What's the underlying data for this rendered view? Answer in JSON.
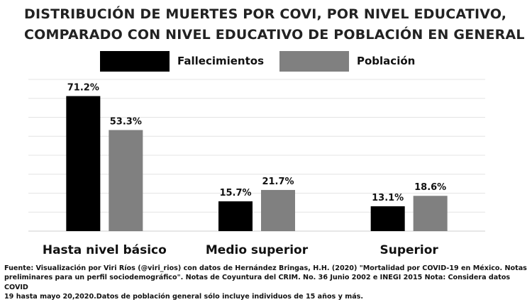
{
  "chart_data": {
    "type": "bar",
    "title_lines": [
      "DISTRIBUCIÓN DE MUERTES POR COVI, POR NIVEL EDUCATIVO,",
      "COMPARADO CON NIVEL EDUCATIVO DE POBLACIÓN EN GENERAL"
    ],
    "categories": [
      "Hasta nivel básico",
      "Medio superior",
      "Superior"
    ],
    "series": [
      {
        "name": "Fallecimientos",
        "values": [
          71.2,
          15.7,
          13.1
        ],
        "labels": [
          "71.2%",
          "15.7%",
          "13.1%"
        ],
        "color": "#000000"
      },
      {
        "name": "Población",
        "values": [
          53.3,
          21.7,
          18.6
        ],
        "labels": [
          "53.3%",
          "21.7%",
          "18.6%"
        ],
        "color": "#808080"
      }
    ],
    "ylim": [
      0,
      80
    ],
    "grid": true,
    "legend_position": "top-center",
    "xlabel": "",
    "ylabel": ""
  },
  "source_lines": [
    "Fuente: Visualización por Viri Ríos (@viri_rios) con datos de Hernández Bringas, H.H. (2020) \"Mortalidad por COVID-19 en México. Notas",
    "preliminares para un perfil sociodemográfico\". Notas de Coyuntura del CRIM. No. 36 Junio 2002 e INEGI 2015  Nota: Considera datos COVID",
    "19 hasta mayo 20,2020.Datos de población general sólo incluye individuos de 15 años y más."
  ]
}
